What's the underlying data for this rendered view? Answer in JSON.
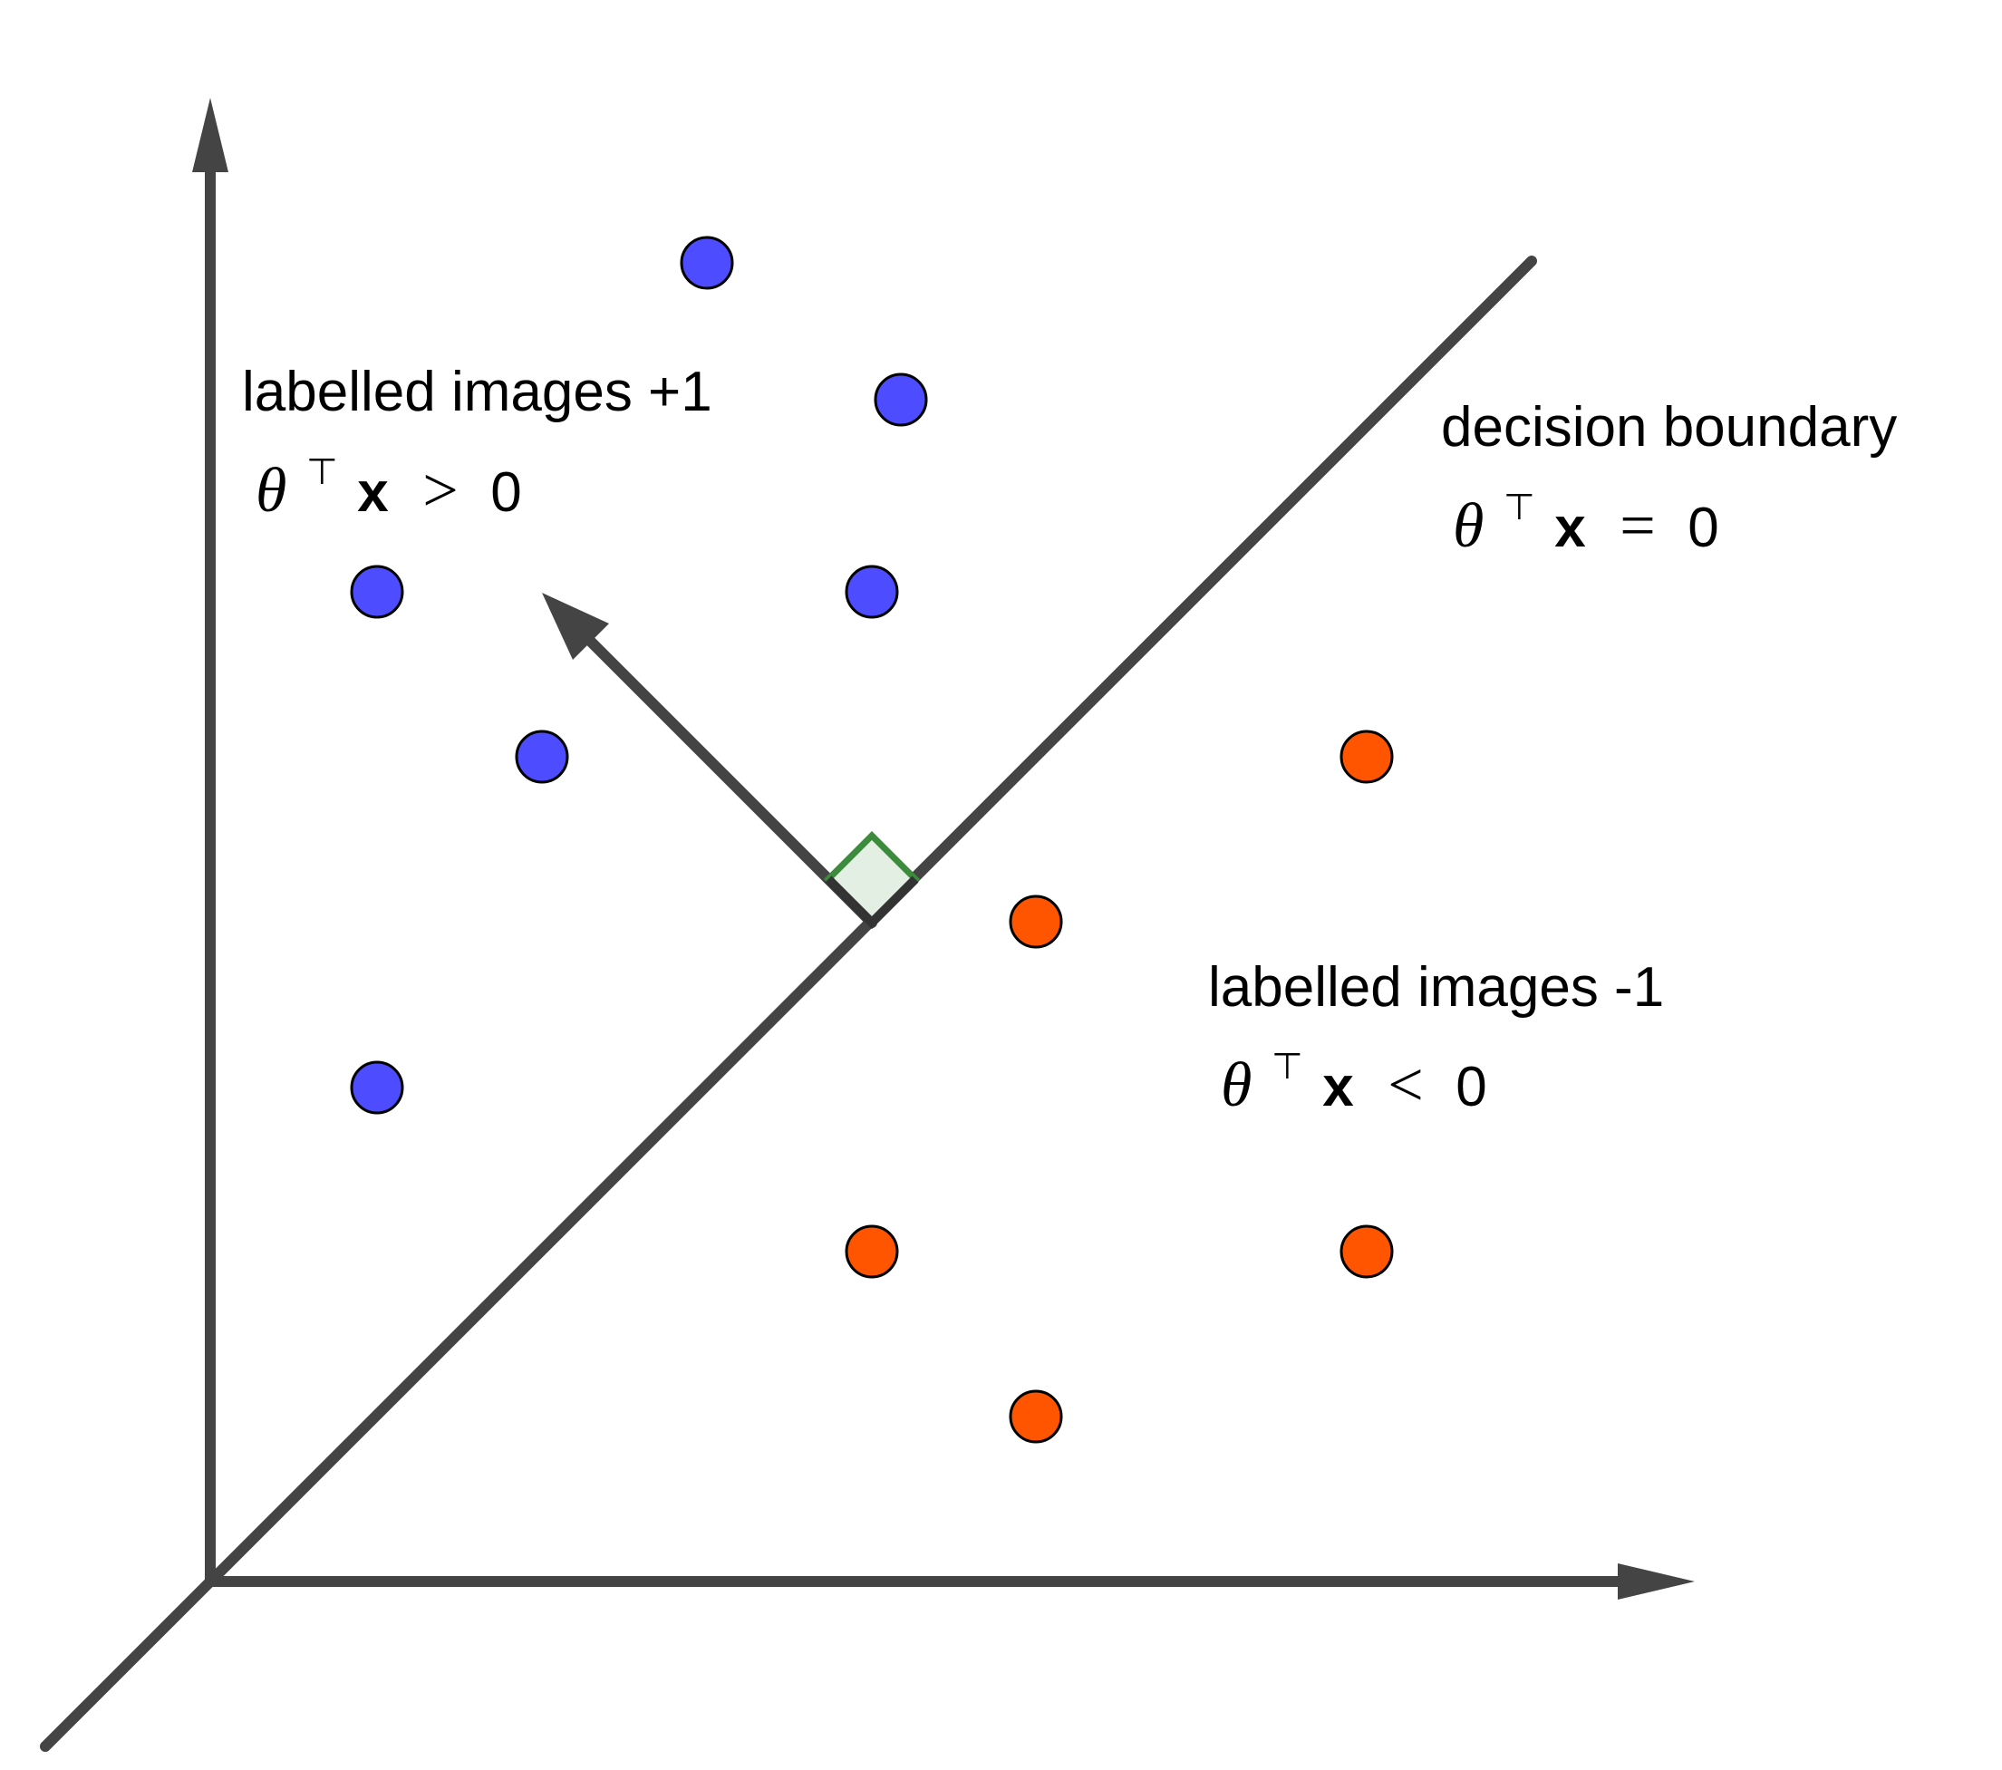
{
  "regions": {
    "positive": {
      "label": "labelled images +1",
      "condition": {
        "symbol": "θ",
        "transpose": "⊤",
        "variable": "x",
        "operator": ">",
        "value": "0"
      }
    },
    "boundary": {
      "label": "decision boundary",
      "condition": {
        "symbol": "θ",
        "transpose": "⊤",
        "variable": "x",
        "operator": "=",
        "value": "0"
      }
    },
    "negative": {
      "label": "labelled images -1",
      "condition": {
        "symbol": "θ",
        "transpose": "⊤",
        "variable": "x",
        "operator": "<",
        "value": "0"
      }
    }
  },
  "colors": {
    "positive_point": "#4d4dff",
    "negative_point": "#ff5500",
    "axis": "#444444",
    "right_angle_stroke": "#3d8c3d",
    "right_angle_fill": "#e3efe3"
  },
  "icons": {
    "normal_vector": "arrow-icon",
    "right_angle": "right-angle-marker-icon"
  }
}
